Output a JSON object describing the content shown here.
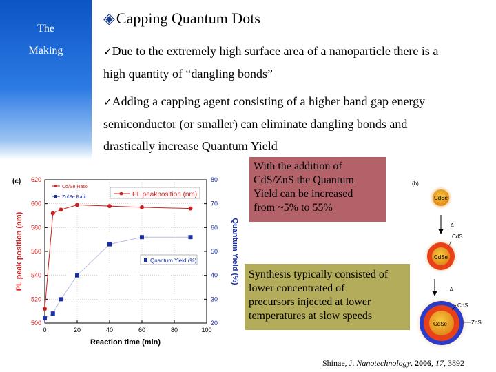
{
  "sidebar": {
    "line1": "The",
    "line2": "Making"
  },
  "slide": {
    "title": "Capping Quantum Dots",
    "bullets": [
      [
        "Due to the extremely high surface area of a nanoparticle there is a",
        "high quantity of “dangling bonds”"
      ],
      [
        "Adding a capping agent consisting of a higher band gap energy",
        "semiconductor (or smaller) can eliminate dangling bonds and",
        "drastically increase Quantum Yield"
      ]
    ]
  },
  "callouts": {
    "addition": [
      "With the addition of",
      "CdS/ZnS the Quantum",
      "Yield can be increased",
      "from ~5% to 55%"
    ],
    "synthesis": [
      "Synthesis typically consisted of",
      "lower concentrated of",
      "precursors injected at lower",
      "temperatures at slow speeds"
    ]
  },
  "citation": {
    "author": "Shinae, J. ",
    "journal": "Nanotechnology",
    "year": "2006",
    "volume": "17",
    "pages": ", 3892"
  },
  "chart_data": {
    "type": "line",
    "panel_label": "(c)",
    "xlabel": "Reaction time (min)",
    "ylabel": "PL peak position (nm)",
    "y2label": "Quantum Yield (%)",
    "xlim": [
      0,
      100
    ],
    "ylim": [
      500,
      620
    ],
    "y2lim": [
      20,
      80
    ],
    "x_ticks": [
      "0",
      "20",
      "40",
      "60",
      "80",
      "100"
    ],
    "y_ticks": [
      "500",
      "520",
      "540",
      "560",
      "580",
      "600",
      "620"
    ],
    "y2_ticks": [
      "20",
      "30",
      "40",
      "50",
      "60",
      "70",
      "80"
    ],
    "legend_top_left": [
      "Cd/Se Ratio",
      "Zn/Se Ratio"
    ],
    "legend_series": [
      "PL peakposition (nm)",
      "Quantum Yield (%)"
    ],
    "series": [
      {
        "name": "PL peakposition (nm)",
        "axis": "left",
        "color": "#cc2222",
        "marker": "circle",
        "x": [
          0,
          5,
          10,
          20,
          40,
          60,
          90
        ],
        "y": [
          512,
          592,
          595,
          599,
          598,
          597,
          596
        ]
      },
      {
        "name": "Quantum Yield (%)",
        "axis": "right",
        "color": "#1a2ea8",
        "marker": "square",
        "x": [
          0,
          5,
          10,
          20,
          40,
          60,
          90
        ],
        "y": [
          22,
          24,
          30,
          40,
          53,
          56,
          56
        ]
      }
    ]
  },
  "diagram": {
    "panel_label": "(b)",
    "core": "CdSe",
    "shell1": "CdS",
    "shell2": "ZnS",
    "heat": "Δ",
    "colors": {
      "core": "#e8a018",
      "shell_cds": "#e84018",
      "shell_zns": "#2a3cc8",
      "glow": "#f8d8a0"
    }
  }
}
